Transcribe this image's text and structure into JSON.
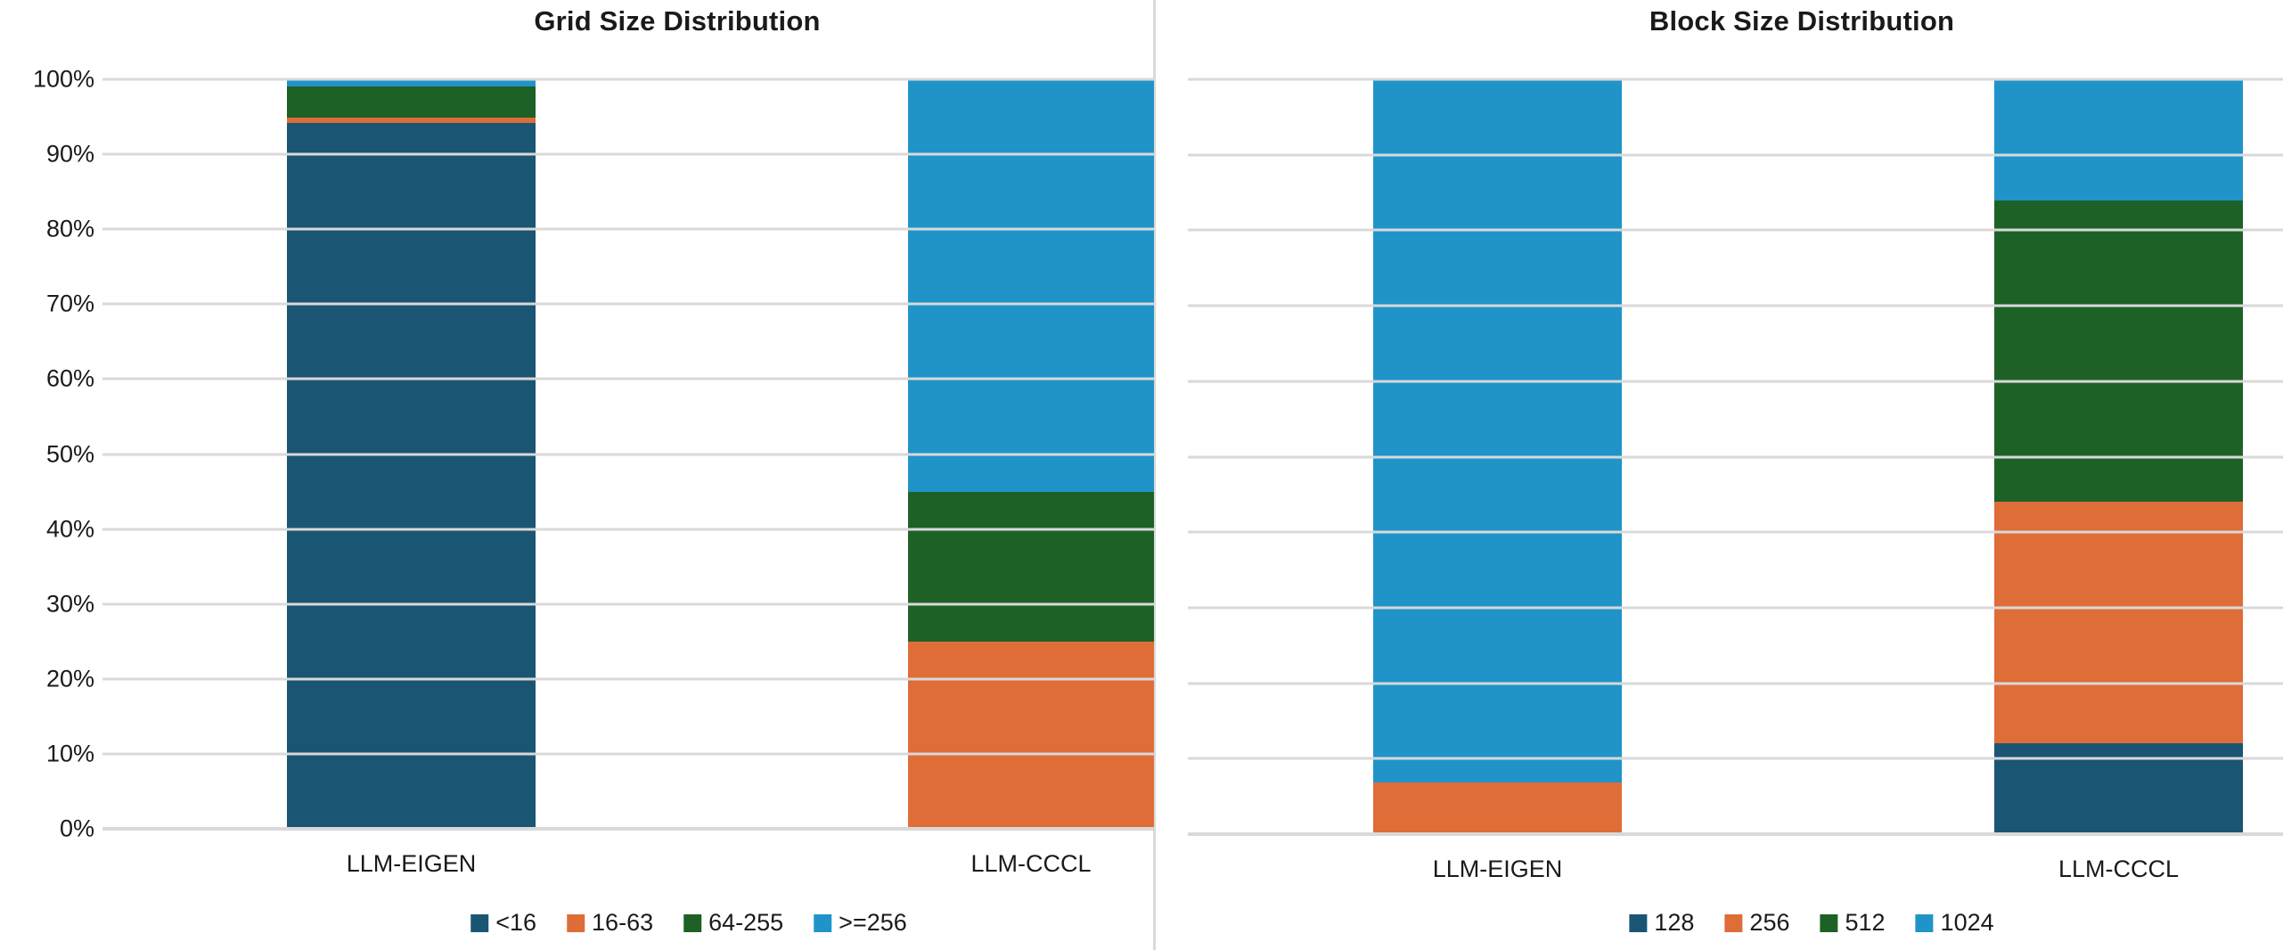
{
  "colors": {
    "background": "#FFFFFF",
    "gridline": "#D9D9D9",
    "axis_line": "#D9D9D9",
    "panel_divider": "#D9D9D9",
    "text": "#1A1A1A",
    "series_palette": [
      "#1B5574",
      "#DF6D38",
      "#1E6126",
      "#2094C9"
    ]
  },
  "chart_data": [
    {
      "type": "bar",
      "stacked": true,
      "percent": true,
      "title": "Grid Size Distribution",
      "categories": [
        "LLM-EIGEN",
        "LLM-CCCL"
      ],
      "series": [
        {
          "name": "<16",
          "color": "#1B5574",
          "values": [
            94.2,
            0
          ]
        },
        {
          "name": "16-63",
          "color": "#DF6D38",
          "values": [
            0.7,
            25
          ]
        },
        {
          "name": "64-255",
          "color": "#1E6126",
          "values": [
            4.1,
            20
          ]
        },
        {
          "name": ">=256",
          "color": "#2094C9",
          "values": [
            1.0,
            55
          ]
        }
      ],
      "ylim": [
        0,
        100
      ],
      "gridline_values": [
        0,
        10,
        20,
        30,
        40,
        50,
        60,
        70,
        80,
        90,
        100
      ],
      "yticks": [
        {
          "value": 0,
          "label": "0%"
        },
        {
          "value": 10,
          "label": "10%"
        },
        {
          "value": 20,
          "label": "20%"
        },
        {
          "value": 30,
          "label": "30%"
        },
        {
          "value": 40,
          "label": "40%"
        },
        {
          "value": 50,
          "label": "50%"
        },
        {
          "value": 60,
          "label": "60%"
        },
        {
          "value": 70,
          "label": "70%"
        },
        {
          "value": 80,
          "label": "80%"
        },
        {
          "value": 90,
          "label": "90%"
        },
        {
          "value": 100,
          "label": "100%"
        }
      ],
      "show_y_labels": true,
      "grid": true,
      "legend_position": "bottom",
      "legend_labels": [
        "<16",
        "16-63",
        "64-255",
        ">=256"
      ]
    },
    {
      "type": "bar",
      "stacked": true,
      "percent": true,
      "title": "Block Size Distribution",
      "categories": [
        "LLM-EIGEN",
        "LLM-CCCL"
      ],
      "series": [
        {
          "name": "128",
          "color": "#1B5574",
          "values": [
            0,
            12
          ]
        },
        {
          "name": "256",
          "color": "#DF6D38",
          "values": [
            6.8,
            32
          ]
        },
        {
          "name": "512",
          "color": "#1E6126",
          "values": [
            0,
            40
          ]
        },
        {
          "name": "1024",
          "color": "#2094C9",
          "values": [
            93.2,
            16
          ]
        }
      ],
      "ylim": [
        0,
        100
      ],
      "gridline_values": [
        0,
        10,
        20,
        30,
        40,
        50,
        60,
        70,
        80,
        90,
        100
      ],
      "yticks": [],
      "show_y_labels": false,
      "grid": true,
      "legend_position": "bottom",
      "legend_labels": [
        "128",
        "256",
        "512",
        "1024"
      ]
    }
  ]
}
